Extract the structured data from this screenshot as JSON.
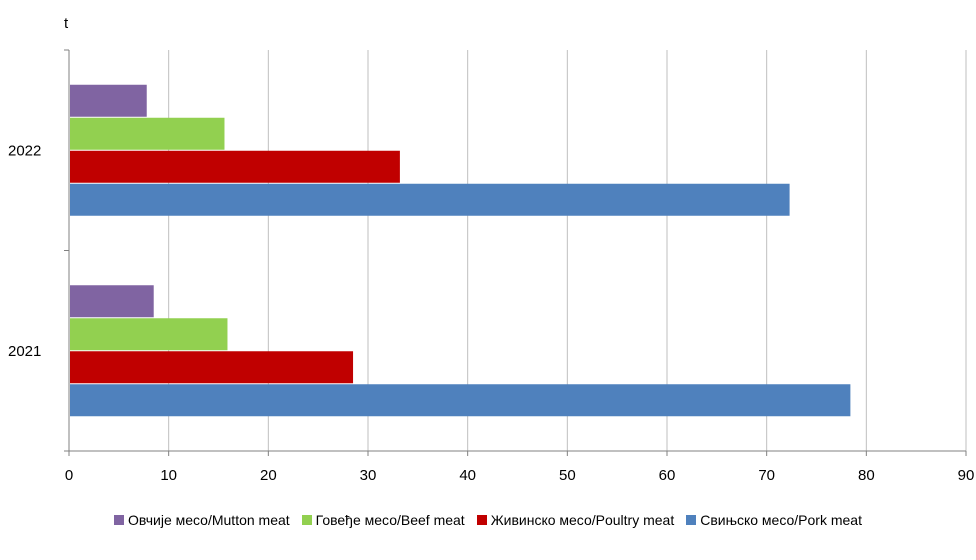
{
  "chart_data": {
    "type": "bar",
    "orientation": "horizontal",
    "unit_label": "t",
    "categories": [
      "2021",
      "2022"
    ],
    "series": [
      {
        "name": "Свињско месо/Pork meat",
        "color": "#4f81bd",
        "values": [
          78.4,
          72.3
        ]
      },
      {
        "name": "Живинско месо/Poultry meat",
        "color": "#c00000",
        "values": [
          28.5,
          33.2
        ]
      },
      {
        "name": "Говеђе месо/Beef meat",
        "color": "#92d050",
        "values": [
          15.9,
          15.6
        ]
      },
      {
        "name": "Овчије месо/Mutton meat",
        "color": "#8064a2",
        "values": [
          8.5,
          7.8
        ]
      }
    ],
    "xlim": [
      0,
      90
    ],
    "xticks": [
      0,
      10,
      20,
      30,
      40,
      50,
      60,
      70,
      80,
      90
    ],
    "grid": true,
    "legend_position": "bottom",
    "legend_order": [
      3,
      2,
      1,
      0
    ]
  }
}
